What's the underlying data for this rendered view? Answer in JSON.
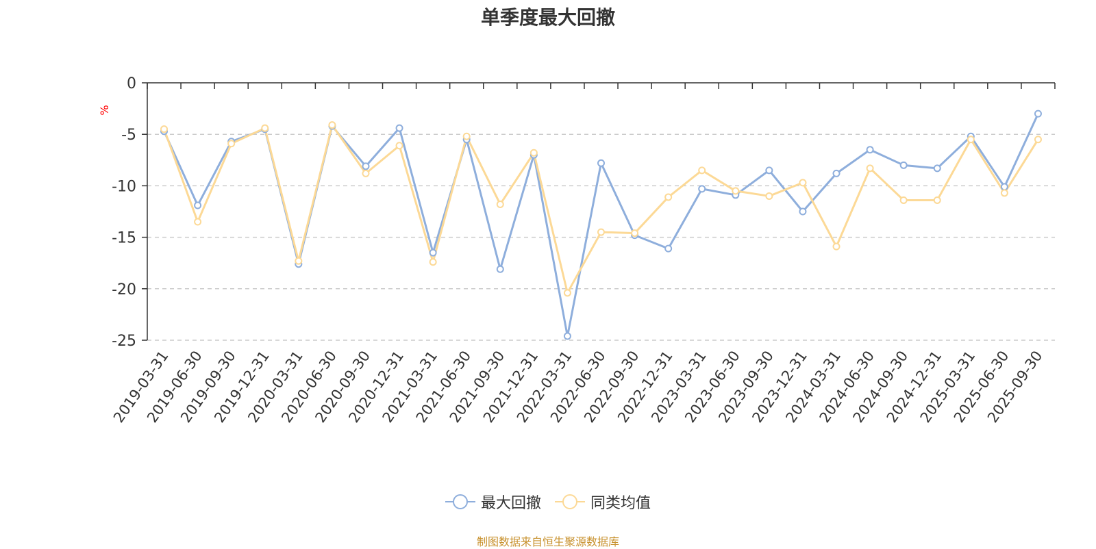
{
  "chart_data": {
    "type": "line",
    "title": "单季度最大回撤",
    "ylabel": "%",
    "ylim": [
      -25,
      0
    ],
    "yticks": [
      0,
      -5,
      -10,
      -15,
      -20,
      -25
    ],
    "grid": true,
    "legend_position": "bottom",
    "categories": [
      "2019-03-31",
      "2019-06-30",
      "2019-09-30",
      "2019-12-31",
      "2020-03-31",
      "2020-06-30",
      "2020-09-30",
      "2020-12-31",
      "2021-03-31",
      "2021-06-30",
      "2021-09-30",
      "2021-12-31",
      "2022-03-31",
      "2022-06-30",
      "2022-09-30",
      "2022-12-31",
      "2023-03-31",
      "2023-06-30",
      "2023-09-30",
      "2023-12-31",
      "2024-03-31",
      "2024-06-30",
      "2024-09-30",
      "2024-12-31",
      "2025-03-31",
      "2025-06-30",
      "2025-09-30"
    ],
    "series": [
      {
        "name": "最大回撤",
        "color": "#8eaedc",
        "values": [
          -4.7,
          -11.9,
          -5.7,
          -4.5,
          -17.6,
          -4.2,
          -8.1,
          -4.4,
          -16.5,
          -5.5,
          -18.1,
          -7.0,
          -24.6,
          -7.8,
          -14.8,
          -16.1,
          -10.3,
          -10.9,
          -8.5,
          -12.5,
          -8.8,
          -6.5,
          -8.0,
          -8.3,
          -5.2,
          -10.1,
          -3.0
        ]
      },
      {
        "name": "同类均值",
        "color": "#fcd996",
        "values": [
          -4.5,
          -13.5,
          -5.9,
          -4.4,
          -17.3,
          -4.1,
          -8.8,
          -6.1,
          -17.4,
          -5.2,
          -11.8,
          -6.8,
          -20.4,
          -14.5,
          -14.6,
          -11.1,
          -8.5,
          -10.5,
          -11.0,
          -9.7,
          -15.9,
          -8.3,
          -11.4,
          -11.4,
          -5.5,
          -10.7,
          -5.5
        ]
      }
    ]
  },
  "footer": {
    "source": "制图数据来自恒生聚源数据库"
  }
}
